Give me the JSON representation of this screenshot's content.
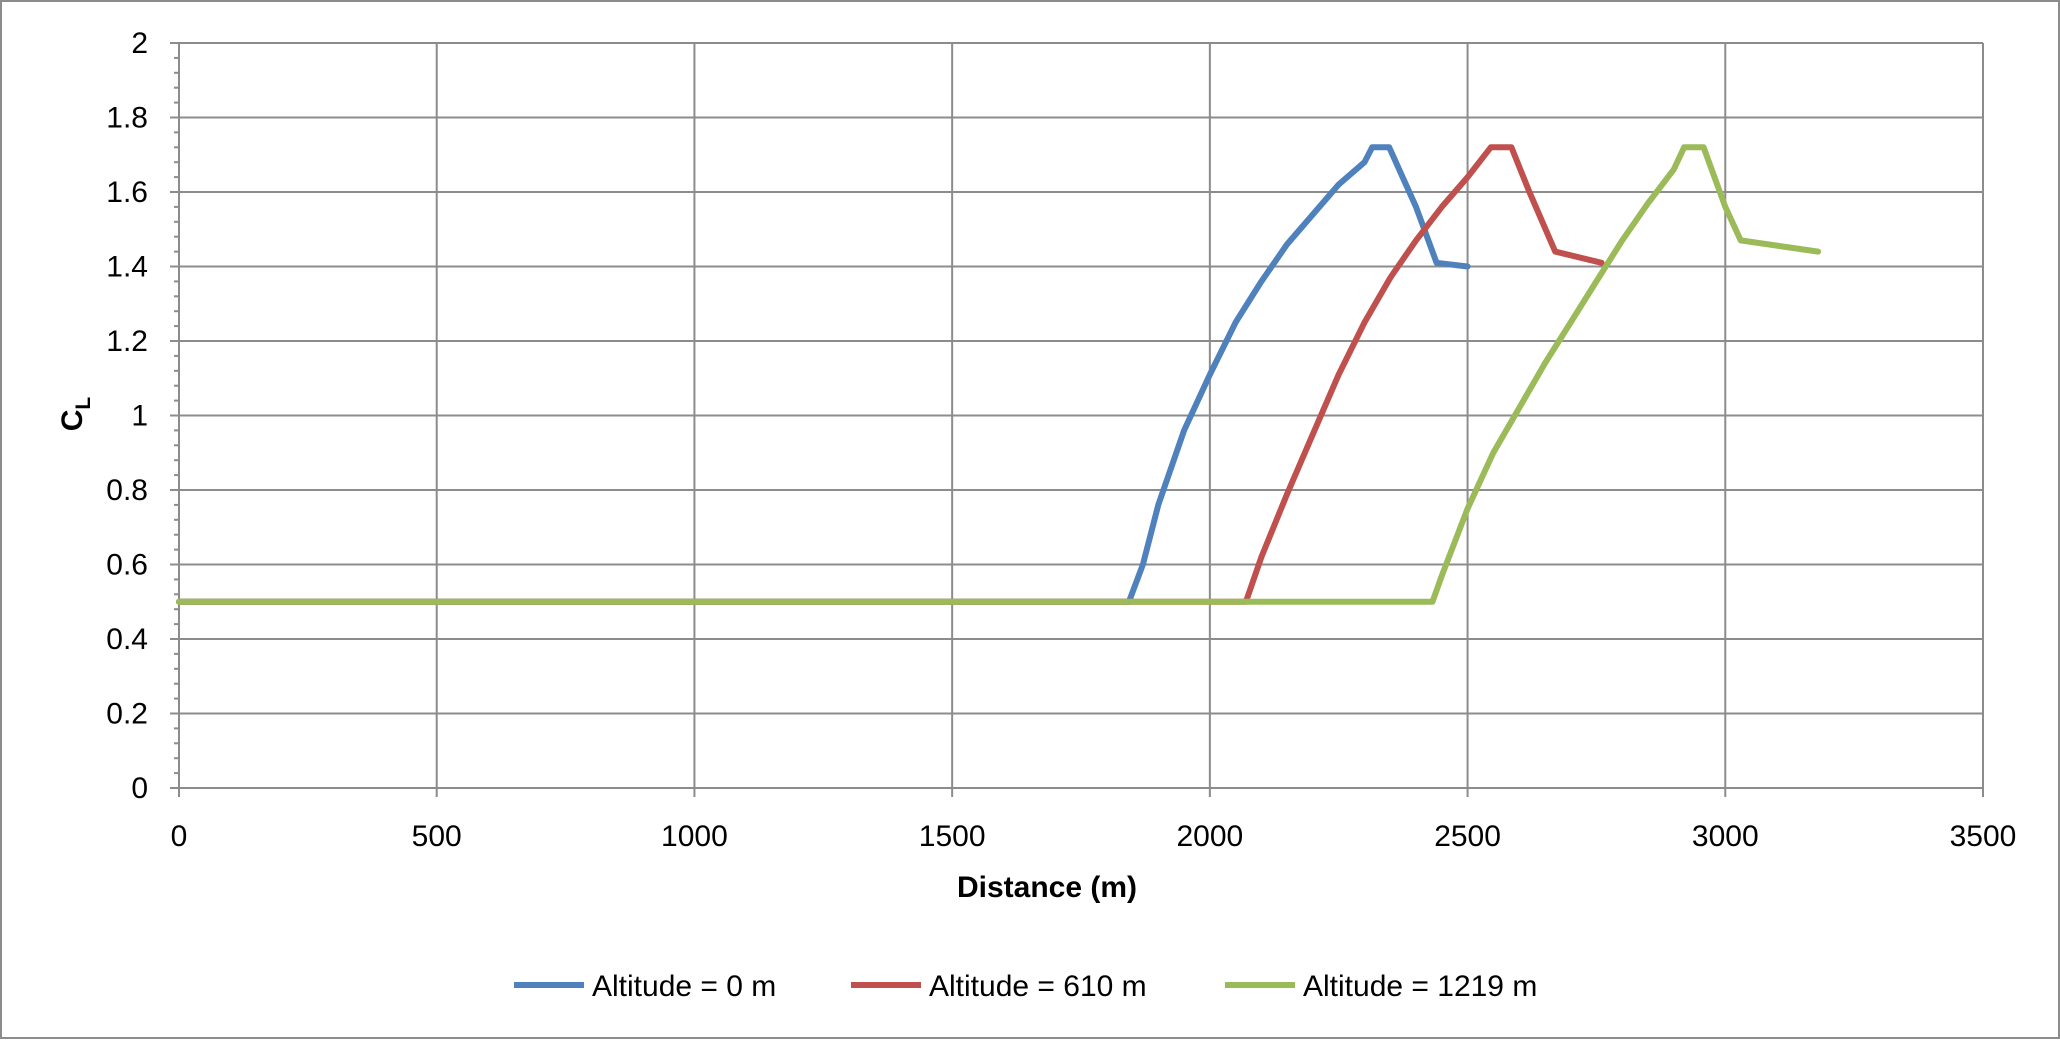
{
  "chart_data": {
    "type": "line",
    "title": "",
    "xlabel": "Distance (m)",
    "ylabel": {
      "main": "C",
      "sub": "L"
    },
    "xlim": [
      0,
      3500
    ],
    "ylim": [
      0,
      2
    ],
    "x_ticks": [
      0,
      500,
      1000,
      1500,
      2000,
      2500,
      3000,
      3500
    ],
    "y_ticks": [
      0,
      0.2,
      0.4,
      0.6,
      0.8,
      1,
      1.2,
      1.4,
      1.6,
      1.8,
      2
    ],
    "x_tick_labels": [
      "0",
      "500",
      "1000",
      "1500",
      "2000",
      "2500",
      "3000",
      "3500"
    ],
    "y_tick_labels": [
      "0",
      "0.2",
      "0.4",
      "0.6",
      "0.8",
      "1",
      "1.2",
      "1.4",
      "1.6",
      "1.8",
      "2"
    ],
    "grid": true,
    "legend_position": "bottom",
    "series": [
      {
        "name": "Altitude = 0 m",
        "color": "#4f81bd",
        "points": [
          [
            0,
            0.5
          ],
          [
            1843,
            0.5
          ],
          [
            1870,
            0.6
          ],
          [
            1900,
            0.76
          ],
          [
            1950,
            0.96
          ],
          [
            2000,
            1.11
          ],
          [
            2050,
            1.25
          ],
          [
            2100,
            1.36
          ],
          [
            2150,
            1.46
          ],
          [
            2200,
            1.54
          ],
          [
            2250,
            1.62
          ],
          [
            2300,
            1.68
          ],
          [
            2315,
            1.72
          ],
          [
            2348,
            1.72
          ],
          [
            2400,
            1.56
          ],
          [
            2440,
            1.41
          ],
          [
            2500,
            1.4
          ]
        ]
      },
      {
        "name": "Altitude = 610 m",
        "color": "#c0504d",
        "points": [
          [
            0,
            0.5
          ],
          [
            2070,
            0.5
          ],
          [
            2100,
            0.62
          ],
          [
            2150,
            0.79
          ],
          [
            2200,
            0.95
          ],
          [
            2250,
            1.11
          ],
          [
            2300,
            1.25
          ],
          [
            2350,
            1.37
          ],
          [
            2400,
            1.47
          ],
          [
            2450,
            1.56
          ],
          [
            2500,
            1.64
          ],
          [
            2545,
            1.72
          ],
          [
            2585,
            1.72
          ],
          [
            2620,
            1.6
          ],
          [
            2670,
            1.44
          ],
          [
            2760,
            1.41
          ]
        ]
      },
      {
        "name": "Altitude = 1219 m",
        "color": "#9bbb59",
        "points": [
          [
            0,
            0.5
          ],
          [
            2432,
            0.5
          ],
          [
            2450,
            0.57
          ],
          [
            2500,
            0.75
          ],
          [
            2550,
            0.9
          ],
          [
            2600,
            1.02
          ],
          [
            2650,
            1.14
          ],
          [
            2700,
            1.25
          ],
          [
            2750,
            1.36
          ],
          [
            2800,
            1.47
          ],
          [
            2850,
            1.57
          ],
          [
            2900,
            1.66
          ],
          [
            2920,
            1.72
          ],
          [
            2958,
            1.72
          ],
          [
            3000,
            1.56
          ],
          [
            3030,
            1.47
          ],
          [
            3180,
            1.44
          ]
        ]
      }
    ]
  }
}
